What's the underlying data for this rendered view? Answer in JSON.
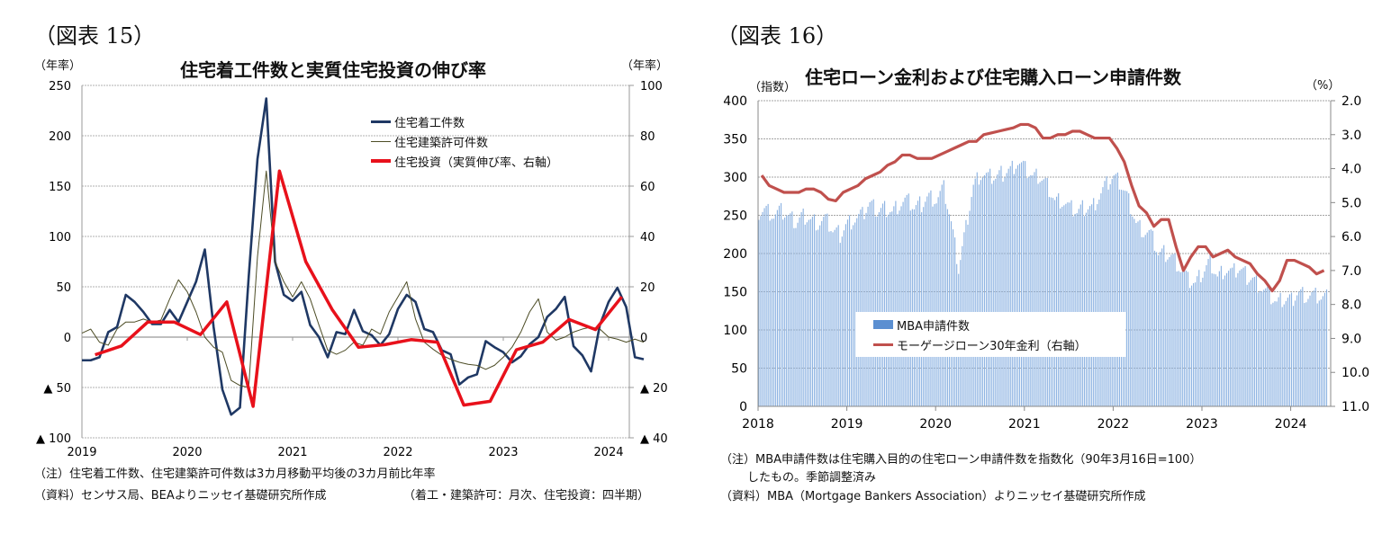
{
  "left": {
    "fig_label": "（図表 15）",
    "unit_left": "（年率）",
    "unit_right": "（年率）",
    "title": "住宅着工件数と実質住宅投資の伸び率",
    "note1": "（注）住宅着工件数、住宅建築許可件数は3カ月移動平均後の3カ月前比年率",
    "note2": "（資料）センサス局、BEAよりニッセイ基礎研究所作成",
    "note3": "（着工・建築許可：月次、住宅投資：四半期）"
  },
  "right": {
    "fig_label": "（図表 16）",
    "unit_left": "（指数）",
    "unit_right": "（%）",
    "title": "住宅ローン金利および住宅購入ローン申請件数",
    "note1": "（注）MBA申請件数は住宅購入目的の住宅ローン申請件数を指数化（90年3月16日=100）",
    "note2": "したもの。季節調整済み",
    "note3": "（資料）MBA（Mortgage Bankers Association）よりニッセイ基礎研究所作成"
  },
  "chart_data": [
    {
      "type": "line",
      "title": "住宅着工件数と実質住宅投資の伸び率",
      "ylabel": "（年率）",
      "y2label": "（年率）",
      "ylim": [
        -100,
        250
      ],
      "y2lim": [
        -40,
        100
      ],
      "yticks": [
        250,
        200,
        150,
        100,
        50,
        0,
        -50,
        -100
      ],
      "ytick_labels": [
        "250",
        "200",
        "150",
        "100",
        "50",
        "0",
        "▲ 50",
        "▲ 100"
      ],
      "y2ticks": [
        100,
        80,
        60,
        40,
        20,
        0,
        -20,
        -40
      ],
      "y2tick_labels": [
        "100",
        "80",
        "60",
        "40",
        "20",
        "0",
        "▲ 20",
        "▲ 40"
      ],
      "xticks": [
        "2019",
        "2020",
        "2021",
        "2022",
        "2023",
        "2024"
      ],
      "x_start": "2019-01",
      "grid": true,
      "legend_position": "top-right",
      "series": [
        {
          "name": "住宅着工件数",
          "color": "#1f3864",
          "frequency": "monthly",
          "axis": "left",
          "values": [
            -23,
            -23,
            -20,
            5,
            10,
            42,
            35,
            25,
            13,
            13,
            27,
            15,
            35,
            55,
            87,
            10,
            -52,
            -77,
            -70,
            60,
            177,
            237,
            75,
            42,
            36,
            45,
            12,
            0,
            -20,
            5,
            3,
            27,
            6,
            2,
            -8,
            3,
            28,
            42,
            35,
            8,
            5,
            -13,
            -17,
            -47,
            -40,
            -37,
            -4,
            -10,
            -15,
            -25,
            -19,
            -7,
            0,
            20,
            28,
            40,
            -9,
            -18,
            -34,
            12,
            35,
            49,
            30,
            -20,
            -22
          ]
        },
        {
          "name": "住宅建築許可件数",
          "color": "#4d4d26",
          "frequency": "monthly",
          "axis": "left",
          "values": [
            4,
            8,
            -5,
            -8,
            8,
            15,
            15,
            18,
            15,
            17,
            38,
            57,
            45,
            25,
            0,
            -10,
            -15,
            -43,
            -48,
            -50,
            80,
            165,
            75,
            55,
            40,
            55,
            38,
            12,
            -13,
            -17,
            -13,
            -5,
            -8,
            8,
            3,
            25,
            40,
            55,
            18,
            -5,
            -12,
            -18,
            -22,
            -25,
            -27,
            -28,
            -32,
            -28,
            -20,
            -10,
            5,
            25,
            38,
            5,
            -3,
            0,
            5,
            8,
            10,
            8,
            0,
            -2,
            -5,
            -2,
            -5
          ]
        },
        {
          "name": "住宅投資（実質伸び率、右軸）",
          "color": "#e8111b",
          "frequency": "quarterly",
          "axis": "right",
          "quarter_months": [
            1,
            4,
            7,
            10
          ],
          "values": [
            -7,
            -3.5,
            6,
            6,
            1,
            14,
            -27.5,
            66,
            30,
            11,
            -4,
            -3,
            -1,
            -2,
            -27,
            -25.5,
            -5,
            -2,
            7,
            3,
            16
          ]
        }
      ]
    },
    {
      "type": "bar",
      "title": "住宅ローン金利および住宅購入ローン申請件数",
      "ylabel": "（指数）",
      "y2label": "（%）",
      "ylim": [
        0,
        400
      ],
      "y2lim": [
        11.0,
        2.0
      ],
      "y2_inverted": true,
      "yticks": [
        0,
        50,
        100,
        150,
        200,
        250,
        300,
        350,
        400
      ],
      "y2ticks": [
        "2.0",
        "3.0",
        "4.0",
        "5.0",
        "6.0",
        "7.0",
        "8.0",
        "9.0",
        "10.0",
        "11.0"
      ],
      "xticks": [
        "2018",
        "2019",
        "2020",
        "2021",
        "2022",
        "2023",
        "2024"
      ],
      "x_start": "2018-01",
      "grid": true,
      "legend_position": "center-left",
      "series": [
        {
          "name": "MBA申請件数",
          "color": "#5b8fd1",
          "kind": "bar",
          "axis": "left",
          "frequency": "monthly",
          "values": [
            255,
            258,
            250,
            255,
            248,
            240,
            250,
            245,
            240,
            245,
            230,
            225,
            240,
            245,
            250,
            265,
            255,
            260,
            255,
            265,
            270,
            260,
            265,
            275,
            270,
            285,
            240,
            180,
            235,
            290,
            305,
            300,
            300,
            305,
            310,
            320,
            310,
            300,
            300,
            290,
            270,
            270,
            260,
            255,
            260,
            260,
            275,
            290,
            300,
            290,
            270,
            240,
            230,
            225,
            200,
            200,
            195,
            180,
            165,
            160,
            175,
            190,
            170,
            180,
            175,
            180,
            170,
            165,
            155,
            145,
            135,
            140,
            140,
            150,
            145,
            145,
            142
          ]
        },
        {
          "name": "モーゲージローン30年金利（右軸）",
          "color": "#c0504d",
          "kind": "line",
          "axis": "right",
          "frequency": "monthly",
          "values": [
            4.2,
            4.5,
            4.6,
            4.7,
            4.7,
            4.7,
            4.6,
            4.6,
            4.7,
            4.9,
            4.95,
            4.7,
            4.6,
            4.5,
            4.3,
            4.2,
            4.1,
            3.9,
            3.8,
            3.6,
            3.6,
            3.7,
            3.7,
            3.7,
            3.6,
            3.5,
            3.4,
            3.3,
            3.2,
            3.2,
            3.0,
            2.95,
            2.9,
            2.85,
            2.8,
            2.7,
            2.7,
            2.8,
            3.1,
            3.1,
            3.0,
            3.0,
            2.9,
            2.9,
            3.0,
            3.1,
            3.1,
            3.1,
            3.4,
            3.8,
            4.5,
            5.1,
            5.3,
            5.7,
            5.5,
            5.5,
            6.3,
            7.0,
            6.6,
            6.3,
            6.3,
            6.6,
            6.5,
            6.4,
            6.6,
            6.7,
            6.8,
            7.1,
            7.3,
            7.6,
            7.3,
            6.7,
            6.7,
            6.8,
            6.9,
            7.1,
            7.0
          ]
        }
      ]
    }
  ]
}
